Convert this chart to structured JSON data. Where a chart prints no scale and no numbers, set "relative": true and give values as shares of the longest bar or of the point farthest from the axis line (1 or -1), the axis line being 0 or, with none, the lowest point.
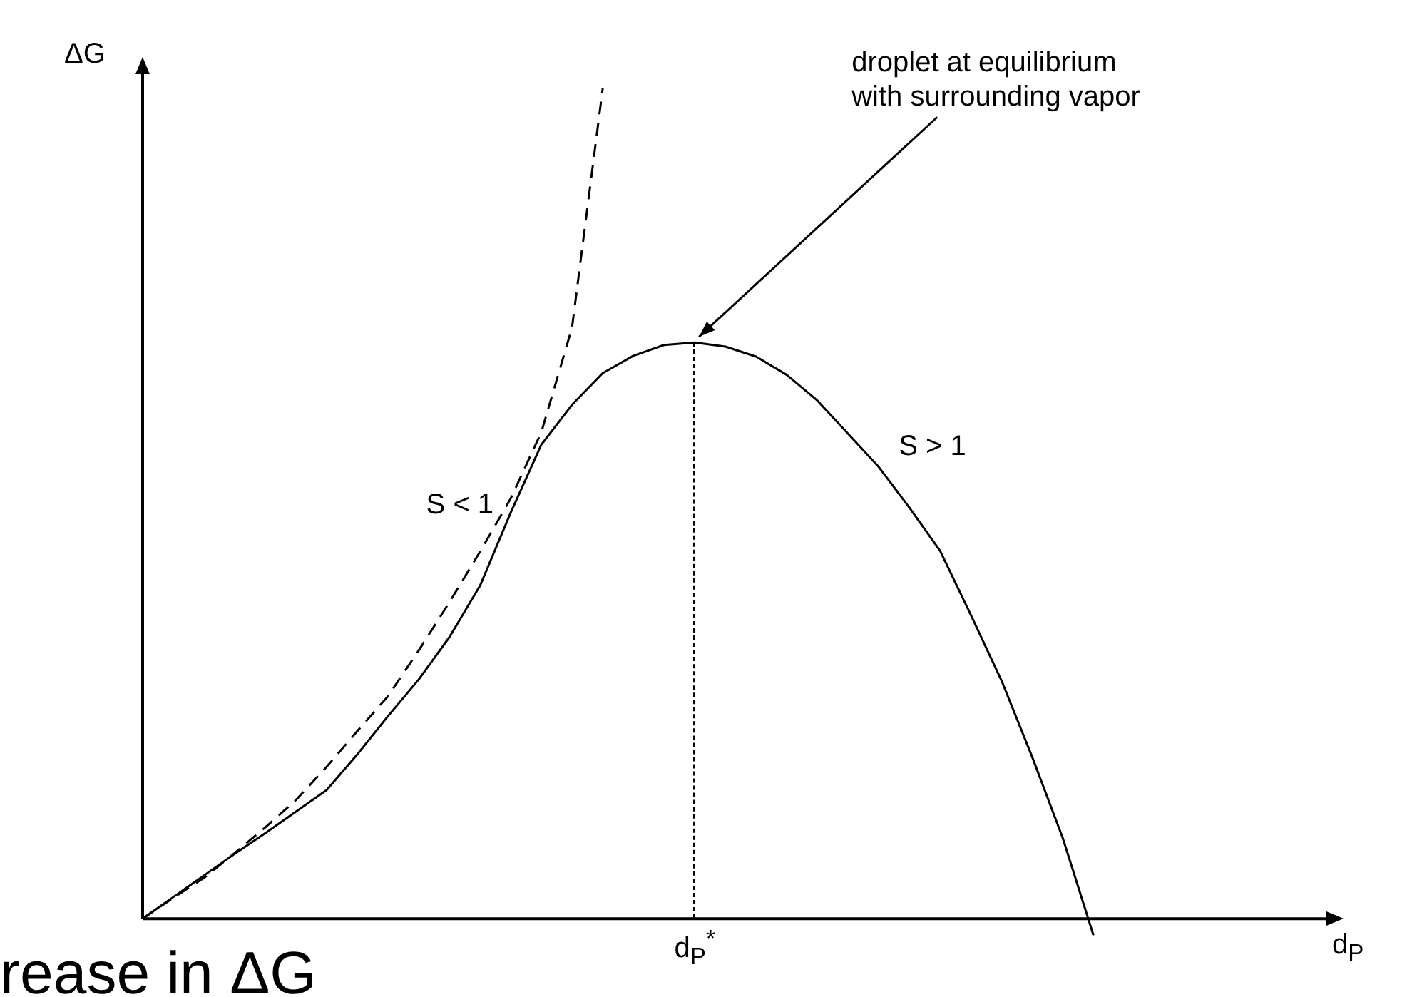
{
  "chart_data": {
    "type": "line",
    "relative": true,
    "ylabel": "ΔG",
    "legend": false,
    "marker": "none",
    "categories": [
      null,
      null,
      null,
      null,
      null,
      null,
      null,
      null,
      null,
      null,
      null,
      null,
      null,
      null,
      null,
      null,
      null,
      null,
      null,
      null,
      null,
      null,
      null,
      null,
      null,
      null,
      null,
      null,
      null,
      null,
      null,
      null
    ],
    "series": [
      {
        "name": "S < 1",
        "color": "#000000",
        "line_style": "dashed",
        "values": [
          0,
          0.025,
          0.049,
          0.079,
          0.11,
          0.143,
          0.183,
          0.226,
          0.268,
          0.323,
          0.381,
          0.442,
          0.506,
          0.586,
          0.712,
          1.0,
          null,
          null,
          null,
          null,
          null,
          null,
          null,
          null,
          null,
          null,
          null,
          null,
          null,
          null,
          null,
          null
        ]
      },
      {
        "name": "S > 1",
        "color": "#000000",
        "line_style": "solid",
        "values": [
          0,
          0.026,
          0.052,
          0.078,
          0.103,
          0.129,
          0.155,
          0.198,
          0.244,
          0.288,
          0.339,
          0.401,
          0.489,
          0.571,
          0.619,
          0.657,
          0.678,
          0.691,
          0.694,
          0.689,
          0.677,
          0.655,
          0.624,
          0.584,
          0.544,
          0.495,
          0.443,
          0.366,
          0.287,
          0.195,
          0.097,
          -0.02
        ]
      }
    ],
    "annotations": [
      "droplet at equilibrium\nwith surrounding vapor",
      "d$_{P}$$^{*}$",
      "rease in ΔG",
      "d$_{P}$"
    ]
  }
}
